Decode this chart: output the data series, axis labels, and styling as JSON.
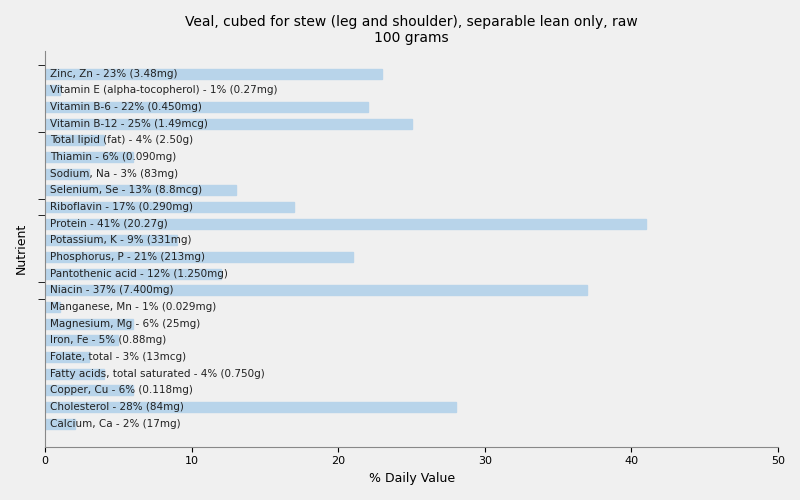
{
  "title": "Veal, cubed for stew (leg and shoulder), separable lean only, raw\n100 grams",
  "xlabel": "% Daily Value",
  "ylabel": "Nutrient",
  "xlim": [
    0,
    50
  ],
  "bar_color": "#b8d4ea",
  "background_color": "#f0f0f0",
  "title_fontsize": 10,
  "label_fontsize": 7.5,
  "nutrients": [
    {
      "label": "Calcium, Ca - 2% (17mg)",
      "value": 2
    },
    {
      "label": "Cholesterol - 28% (84mg)",
      "value": 28
    },
    {
      "label": "Copper, Cu - 6% (0.118mg)",
      "value": 6
    },
    {
      "label": "Fatty acids, total saturated - 4% (0.750g)",
      "value": 4
    },
    {
      "label": "Folate, total - 3% (13mcg)",
      "value": 3
    },
    {
      "label": "Iron, Fe - 5% (0.88mg)",
      "value": 5
    },
    {
      "label": "Magnesium, Mg - 6% (25mg)",
      "value": 6
    },
    {
      "label": "Manganese, Mn - 1% (0.029mg)",
      "value": 1
    },
    {
      "label": "Niacin - 37% (7.400mg)",
      "value": 37
    },
    {
      "label": "Pantothenic acid - 12% (1.250mg)",
      "value": 12
    },
    {
      "label": "Phosphorus, P - 21% (213mg)",
      "value": 21
    },
    {
      "label": "Potassium, K - 9% (331mg)",
      "value": 9
    },
    {
      "label": "Protein - 41% (20.27g)",
      "value": 41
    },
    {
      "label": "Riboflavin - 17% (0.290mg)",
      "value": 17
    },
    {
      "label": "Selenium, Se - 13% (8.8mcg)",
      "value": 13
    },
    {
      "label": "Sodium, Na - 3% (83mg)",
      "value": 3
    },
    {
      "label": "Thiamin - 6% (0.090mg)",
      "value": 6
    },
    {
      "label": "Total lipid (fat) - 4% (2.50g)",
      "value": 4
    },
    {
      "label": "Vitamin B-12 - 25% (1.49mcg)",
      "value": 25
    },
    {
      "label": "Vitamin B-6 - 22% (0.450mg)",
      "value": 22
    },
    {
      "label": "Vitamin E (alpha-tocopherol) - 1% (0.27mg)",
      "value": 1
    },
    {
      "label": "Zinc, Zn - 23% (3.48mg)",
      "value": 23
    }
  ]
}
